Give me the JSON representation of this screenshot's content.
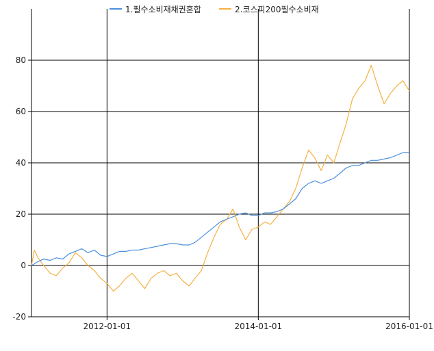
{
  "chart_data": {
    "type": "line",
    "title": "",
    "xlabel": "",
    "ylabel": "",
    "xlim": [
      "2011-01-01",
      "2016-01-01"
    ],
    "ylim": [
      -20,
      100
    ],
    "yticks": [
      -20,
      0,
      20,
      40,
      60,
      80
    ],
    "xticks": [
      "2012-01-01",
      "2014-01-01",
      "2016-01-01"
    ],
    "grid": true,
    "legend_position": "top",
    "series": [
      {
        "name": "1.필수소비재채권혼합",
        "color": "#4a8fde",
        "points": [
          [
            "2011-01-01",
            0
          ],
          [
            "2011-02-01",
            1.5
          ],
          [
            "2011-03-01",
            2.5
          ],
          [
            "2011-04-01",
            2
          ],
          [
            "2011-05-01",
            3
          ],
          [
            "2011-06-01",
            2.5
          ],
          [
            "2011-07-01",
            4.5
          ],
          [
            "2011-08-01",
            5.5
          ],
          [
            "2011-09-01",
            6.5
          ],
          [
            "2011-10-01",
            5
          ],
          [
            "2011-11-01",
            6
          ],
          [
            "2011-12-01",
            4
          ],
          [
            "2012-01-01",
            3.5
          ],
          [
            "2012-02-01",
            4.5
          ],
          [
            "2012-03-01",
            5.5
          ],
          [
            "2012-04-01",
            5.5
          ],
          [
            "2012-05-01",
            6
          ],
          [
            "2012-06-01",
            6
          ],
          [
            "2012-07-01",
            6.5
          ],
          [
            "2012-08-01",
            7
          ],
          [
            "2012-09-01",
            7.5
          ],
          [
            "2012-10-01",
            8
          ],
          [
            "2012-11-01",
            8.5
          ],
          [
            "2012-12-01",
            8.5
          ],
          [
            "2013-01-01",
            8
          ],
          [
            "2013-02-01",
            8
          ],
          [
            "2013-03-01",
            9
          ],
          [
            "2013-04-01",
            11
          ],
          [
            "2013-05-01",
            13
          ],
          [
            "2013-06-01",
            15
          ],
          [
            "2013-07-01",
            17
          ],
          [
            "2013-08-01",
            18
          ],
          [
            "2013-09-01",
            19
          ],
          [
            "2013-10-01",
            20
          ],
          [
            "2013-11-01",
            20.5
          ],
          [
            "2013-12-01",
            19.5
          ],
          [
            "2014-01-01",
            19.5
          ],
          [
            "2014-02-01",
            20.5
          ],
          [
            "2014-03-01",
            20.5
          ],
          [
            "2014-04-01",
            21
          ],
          [
            "2014-05-01",
            22
          ],
          [
            "2014-06-01",
            24
          ],
          [
            "2014-07-01",
            26
          ],
          [
            "2014-08-01",
            30
          ],
          [
            "2014-09-01",
            32
          ],
          [
            "2014-10-01",
            33
          ],
          [
            "2014-11-01",
            32
          ],
          [
            "2014-12-01",
            33
          ],
          [
            "2015-01-01",
            34
          ],
          [
            "2015-02-01",
            36
          ],
          [
            "2015-03-01",
            38
          ],
          [
            "2015-04-01",
            39
          ],
          [
            "2015-05-01",
            39
          ],
          [
            "2015-06-01",
            40
          ],
          [
            "2015-07-01",
            41
          ],
          [
            "2015-08-01",
            41
          ],
          [
            "2015-09-01",
            41.5
          ],
          [
            "2015-10-01",
            42
          ],
          [
            "2015-11-01",
            43
          ],
          [
            "2015-12-01",
            44
          ],
          [
            "2016-01-01",
            44
          ]
        ]
      },
      {
        "name": "2.코스피200필수소비재",
        "color": "#f5b041",
        "points": [
          [
            "2011-01-01",
            0
          ],
          [
            "2011-01-15",
            6
          ],
          [
            "2011-02-01",
            3
          ],
          [
            "2011-03-01",
            0
          ],
          [
            "2011-04-01",
            -3
          ],
          [
            "2011-05-01",
            -4
          ],
          [
            "2011-06-01",
            -1
          ],
          [
            "2011-07-01",
            1
          ],
          [
            "2011-08-01",
            5
          ],
          [
            "2011-09-01",
            3
          ],
          [
            "2011-10-01",
            0
          ],
          [
            "2011-11-01",
            -2
          ],
          [
            "2011-12-01",
            -5
          ],
          [
            "2012-01-01",
            -7
          ],
          [
            "2012-02-01",
            -10
          ],
          [
            "2012-03-01",
            -8
          ],
          [
            "2012-04-01",
            -5
          ],
          [
            "2012-05-01",
            -3
          ],
          [
            "2012-06-01",
            -6
          ],
          [
            "2012-07-01",
            -9
          ],
          [
            "2012-08-01",
            -5
          ],
          [
            "2012-09-01",
            -3
          ],
          [
            "2012-10-01",
            -2
          ],
          [
            "2012-11-01",
            -4
          ],
          [
            "2012-12-01",
            -3
          ],
          [
            "2013-01-01",
            -6
          ],
          [
            "2013-02-01",
            -8
          ],
          [
            "2013-03-01",
            -5
          ],
          [
            "2013-04-01",
            -2
          ],
          [
            "2013-05-01",
            5
          ],
          [
            "2013-06-01",
            11
          ],
          [
            "2013-07-01",
            16
          ],
          [
            "2013-08-01",
            18
          ],
          [
            "2013-09-01",
            22
          ],
          [
            "2013-10-01",
            15
          ],
          [
            "2013-11-01",
            10
          ],
          [
            "2013-12-01",
            14
          ],
          [
            "2014-01-01",
            15
          ],
          [
            "2014-02-01",
            17
          ],
          [
            "2014-03-01",
            16
          ],
          [
            "2014-04-01",
            19
          ],
          [
            "2014-05-01",
            22
          ],
          [
            "2014-06-01",
            25
          ],
          [
            "2014-07-01",
            30
          ],
          [
            "2014-08-01",
            38
          ],
          [
            "2014-09-01",
            45
          ],
          [
            "2014-10-01",
            42
          ],
          [
            "2014-11-01",
            37
          ],
          [
            "2014-12-01",
            43
          ],
          [
            "2015-01-01",
            40
          ],
          [
            "2015-02-01",
            48
          ],
          [
            "2015-03-01",
            55
          ],
          [
            "2015-04-01",
            65
          ],
          [
            "2015-05-01",
            69
          ],
          [
            "2015-06-01",
            72
          ],
          [
            "2015-07-01",
            78
          ],
          [
            "2015-08-01",
            70
          ],
          [
            "2015-09-01",
            63
          ],
          [
            "2015-10-01",
            67
          ],
          [
            "2015-11-01",
            70
          ],
          [
            "2015-12-01",
            72
          ],
          [
            "2016-01-01",
            68
          ]
        ]
      }
    ]
  }
}
